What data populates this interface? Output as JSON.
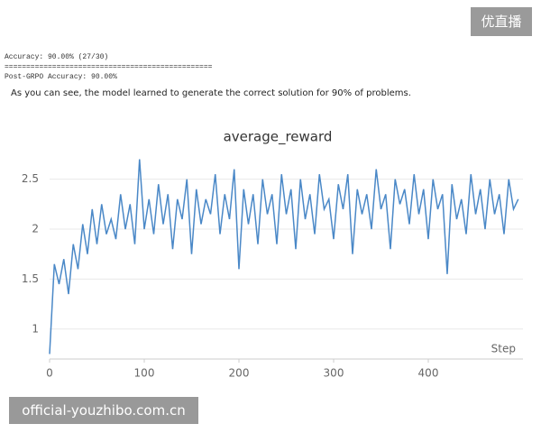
{
  "badge": "优直播",
  "log": {
    "lines": [
      "Accuracy: 90.00% (27/30)",
      "================================================",
      "Post-GRPO Accuracy: 90.00%"
    ]
  },
  "caption": "As you can see, the model learned to generate the correct solution for 90% of problems.",
  "chart_data": {
    "type": "line",
    "title": "average_reward",
    "x_label": "Step",
    "x": [
      0,
      5,
      10,
      15,
      20,
      25,
      30,
      35,
      40,
      45,
      50,
      55,
      60,
      65,
      70,
      75,
      80,
      85,
      90,
      95,
      100,
      105,
      110,
      115,
      120,
      125,
      130,
      135,
      140,
      145,
      150,
      155,
      160,
      165,
      170,
      175,
      180,
      185,
      190,
      195,
      200,
      205,
      210,
      215,
      220,
      225,
      230,
      235,
      240,
      245,
      250,
      255,
      260,
      265,
      270,
      275,
      280,
      285,
      290,
      295,
      300,
      305,
      310,
      315,
      320,
      325,
      330,
      335,
      340,
      345,
      350,
      355,
      360,
      365,
      370,
      375,
      380,
      385,
      390,
      395,
      400,
      405,
      410,
      415,
      420,
      425,
      430,
      435,
      440,
      445,
      450,
      455,
      460,
      465,
      470,
      475,
      480,
      485,
      490,
      495
    ],
    "series": [
      {
        "name": "average_reward",
        "color": "#4a88c7",
        "values": [
          0.75,
          1.65,
          1.45,
          1.7,
          1.35,
          1.85,
          1.6,
          2.05,
          1.75,
          2.2,
          1.85,
          2.25,
          1.95,
          2.1,
          1.9,
          2.35,
          2.0,
          2.25,
          1.85,
          2.7,
          2.0,
          2.3,
          1.95,
          2.45,
          2.05,
          2.35,
          1.8,
          2.3,
          2.1,
          2.5,
          1.75,
          2.4,
          2.05,
          2.3,
          2.15,
          2.55,
          1.95,
          2.35,
          2.1,
          2.6,
          1.6,
          2.4,
          2.05,
          2.35,
          1.85,
          2.5,
          2.15,
          2.35,
          1.85,
          2.55,
          2.15,
          2.4,
          1.8,
          2.5,
          2.1,
          2.35,
          1.95,
          2.55,
          2.2,
          2.3,
          1.9,
          2.45,
          2.2,
          2.55,
          1.75,
          2.4,
          2.15,
          2.35,
          2.0,
          2.6,
          2.2,
          2.35,
          1.8,
          2.5,
          2.25,
          2.4,
          2.05,
          2.55,
          2.15,
          2.4,
          1.9,
          2.5,
          2.2,
          2.35,
          1.55,
          2.45,
          2.1,
          2.3,
          1.95,
          2.55,
          2.15,
          2.4,
          2.0,
          2.5,
          2.15,
          2.35,
          1.95,
          2.5,
          2.2,
          2.3
        ]
      }
    ],
    "xlim": [
      0,
      500
    ],
    "ylim": [
      0.7,
      2.75
    ],
    "xticks": [
      0,
      100,
      200,
      300,
      400
    ],
    "yticks": [
      1,
      1.5,
      2,
      2.5
    ],
    "grid": true
  },
  "watermark": "official-youzhibo.com.cn"
}
